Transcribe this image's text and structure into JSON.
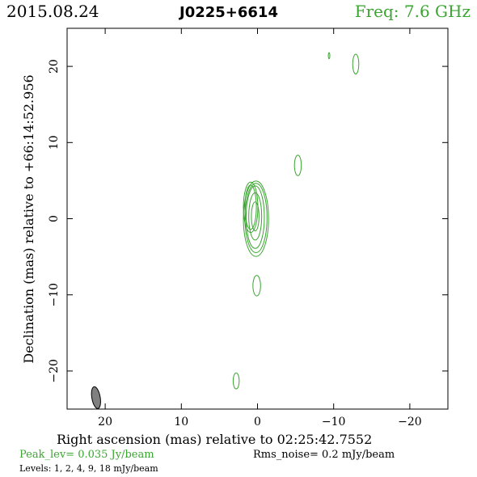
{
  "header": {
    "date": "2015.08.24",
    "source": "J0225+6614",
    "freq": "Freq: 7.6 GHz"
  },
  "footer": {
    "peak": "Peak_lev=  0.035 Jy/beam",
    "rms": "Rms_noise=  0.2 mJy/beam",
    "levels": "Levels:   1,   2,   4,   9,  18 mJy/beam"
  },
  "colors": {
    "contour": "#3aa530",
    "beam_fill": "#808080",
    "axis": "#000000"
  },
  "chart_data": {
    "type": "contour",
    "xlabel": "Right ascension (mas) relative to 02:25:42.7552",
    "ylabel": "Declination (mas) relative to +66:14:52.956",
    "xlim": [
      25,
      -25
    ],
    "ylim": [
      -25,
      25
    ],
    "x_ticks": [
      20,
      10,
      0,
      -10,
      -20
    ],
    "y_ticks": [
      20,
      10,
      0,
      -10,
      -20
    ],
    "x_tick_labels": [
      "20",
      "10",
      "0",
      "−10",
      "−20"
    ],
    "y_tick_labels": [
      "20",
      "10",
      "0",
      "−10",
      "−20"
    ],
    "contour_levels_mJy": [
      1,
      2,
      4,
      9,
      18
    ],
    "beam": {
      "x": 21.2,
      "y": -23.5,
      "major_mas": 2.9,
      "minor_mas": 1.1,
      "pa_deg": -10
    },
    "components": [
      {
        "x": 0.2,
        "y": 0.0,
        "contours": [
          {
            "level": 1,
            "rx": 1.65,
            "ry": 4.95,
            "dx": 0.0,
            "dy": 0.0
          },
          {
            "level": 2,
            "rx": 1.45,
            "ry": 4.55,
            "dx": 0.0,
            "dy": 0.1
          },
          {
            "level": 4,
            "rx": 1.2,
            "ry": 4.1,
            "dx": 0.1,
            "dy": 0.2
          },
          {
            "level": 9,
            "rx": 0.85,
            "ry": 3.1,
            "dx": 0.1,
            "dy": 0.3
          },
          {
            "level": 18,
            "rx": 0.5,
            "ry": 1.9,
            "dx": 0.1,
            "dy": 0.3
          }
        ]
      },
      {
        "x": 0.9,
        "y": 1.5,
        "contours": [
          {
            "level": 1,
            "rx": 0.95,
            "ry": 3.3,
            "dx": 0.0,
            "dy": 0.0
          },
          {
            "level": 2,
            "rx": 0.75,
            "ry": 2.9,
            "dx": 0.0,
            "dy": 0.0
          }
        ]
      },
      {
        "x": -5.3,
        "y": 7.0,
        "contours": [
          {
            "level": 1,
            "rx": 0.45,
            "ry": 1.35,
            "dx": 0,
            "dy": 0
          }
        ]
      },
      {
        "x": 0.1,
        "y": -8.8,
        "contours": [
          {
            "level": 1,
            "rx": 0.5,
            "ry": 1.35,
            "dx": 0,
            "dy": 0
          }
        ]
      },
      {
        "x": -12.9,
        "y": 20.3,
        "contours": [
          {
            "level": 1,
            "rx": 0.4,
            "ry": 1.3,
            "dx": 0,
            "dy": 0
          }
        ]
      },
      {
        "x": -9.4,
        "y": 21.4,
        "contours": [
          {
            "level": 1,
            "rx": 0.1,
            "ry": 0.4,
            "dx": 0,
            "dy": 0
          }
        ]
      },
      {
        "x": 2.8,
        "y": -21.3,
        "contours": [
          {
            "level": 1,
            "rx": 0.4,
            "ry": 1.05,
            "dx": 0,
            "dy": 0
          }
        ]
      }
    ]
  }
}
